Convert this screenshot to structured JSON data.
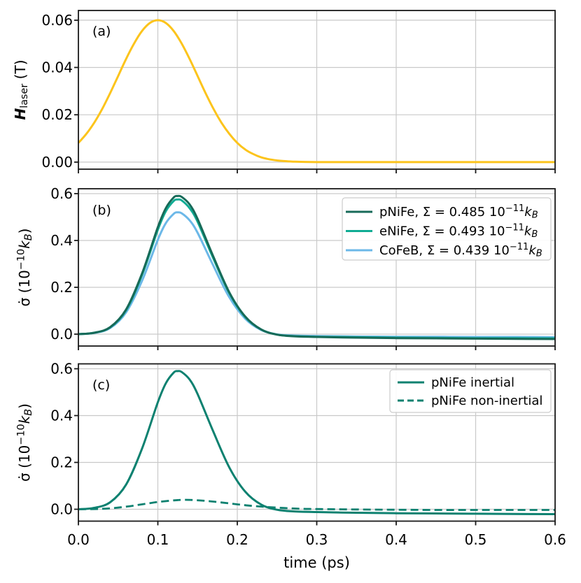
{
  "figure": {
    "xlabel": "time (ps)",
    "xlim": [
      0,
      0.6
    ],
    "xticks": [
      0,
      0.1,
      0.2,
      0.3,
      0.4,
      0.5,
      0.6
    ],
    "xtick_labels": [
      "0.0",
      "0.1",
      "0.2",
      "0.3",
      "0.4",
      "0.5",
      "0.6"
    ],
    "grid": true,
    "colors": {
      "background": "#ffffff",
      "grid": "#c9c9c9",
      "spine": "#1a1a1a",
      "text": "#000000",
      "legend_border": "#cccccc",
      "legend_background": "#ffffff"
    }
  },
  "chart_data": [
    {
      "type": "line",
      "panel": "a",
      "panel_label": "(a)",
      "ylabel_segments": [
        {
          "t": "H",
          "italic": true,
          "bold": true
        },
        {
          "t": "laser",
          "sub": true
        },
        {
          "t": " (T)"
        }
      ],
      "ylim": [
        -0.003,
        0.0641
      ],
      "yticks": [
        0,
        0.02,
        0.04,
        0.06
      ],
      "ytick_labels": [
        "0.00",
        "0.02",
        "0.04",
        "0.06"
      ],
      "grid": true,
      "series": [
        {
          "name": "H_laser",
          "color": "#FCC41C",
          "style": "solid",
          "points": [
            [
              0,
              0.0081
            ],
            [
              0.01,
              0.0119
            ],
            [
              0.02,
              0.0167
            ],
            [
              0.03,
              0.0225
            ],
            [
              0.04,
              0.0292
            ],
            [
              0.05,
              0.0364
            ],
            [
              0.06,
              0.0436
            ],
            [
              0.07,
              0.0501
            ],
            [
              0.08,
              0.0554
            ],
            [
              0.09,
              0.0588
            ],
            [
              0.1,
              0.06
            ],
            [
              0.11,
              0.0588
            ],
            [
              0.12,
              0.0554
            ],
            [
              0.13,
              0.0501
            ],
            [
              0.14,
              0.0436
            ],
            [
              0.15,
              0.0364
            ],
            [
              0.16,
              0.0292
            ],
            [
              0.17,
              0.0225
            ],
            [
              0.18,
              0.0167
            ],
            [
              0.19,
              0.0119
            ],
            [
              0.2,
              0.0081
            ],
            [
              0.21,
              0.0053
            ],
            [
              0.22,
              0.0034
            ],
            [
              0.23,
              0.002
            ],
            [
              0.24,
              0.0012
            ],
            [
              0.25,
              0.0007
            ],
            [
              0.26,
              0.0004
            ],
            [
              0.27,
              0.0002
            ],
            [
              0.28,
              0.0001
            ],
            [
              0.3,
              0
            ],
            [
              0.35,
              0
            ],
            [
              0.4,
              0
            ],
            [
              0.45,
              0
            ],
            [
              0.5,
              0
            ],
            [
              0.55,
              0
            ],
            [
              0.6,
              0
            ]
          ]
        }
      ]
    },
    {
      "type": "line",
      "panel": "b",
      "panel_label": "(b)",
      "ylabel_segments": [
        {
          "t": "σ̇ (10"
        },
        {
          "t": "−10",
          "sup": true
        },
        {
          "t": "k",
          "italic": true
        },
        {
          "t": "B",
          "sub": true,
          "italic": true
        },
        {
          "t": ")"
        }
      ],
      "ylim": [
        -0.0507,
        0.6209
      ],
      "yticks": [
        0,
        0.2,
        0.4,
        0.6
      ],
      "ytick_labels": [
        "0.0",
        "0.2",
        "0.4",
        "0.6"
      ],
      "grid": true,
      "legend": {
        "position": "upper-right",
        "items": [
          {
            "series": "pNiFe",
            "segments": [
              {
                "t": "pNiFe, Σ = 0.485 10"
              },
              {
                "t": "−11",
                "sup": true
              },
              {
                "t": "k",
                "italic": true
              },
              {
                "t": "B",
                "sub": true,
                "italic": true
              }
            ]
          },
          {
            "series": "eNiFe",
            "segments": [
              {
                "t": "eNiFe, Σ = 0.493 10"
              },
              {
                "t": "−11",
                "sup": true
              },
              {
                "t": "k",
                "italic": true
              },
              {
                "t": "B",
                "sub": true,
                "italic": true
              }
            ]
          },
          {
            "series": "CoFeB",
            "segments": [
              {
                "t": "CoFeB, Σ = 0.439 10"
              },
              {
                "t": "−11",
                "sup": true
              },
              {
                "t": "k",
                "italic": true
              },
              {
                "t": "B",
                "sub": true,
                "italic": true
              }
            ]
          }
        ]
      },
      "series": [
        {
          "name": "pNiFe",
          "color": "#176A58",
          "style": "solid",
          "sigma_label": "0.485",
          "points": [
            [
              0,
              0
            ],
            [
              0.02,
              0.006
            ],
            [
              0.04,
              0.03
            ],
            [
              0.06,
              0.105
            ],
            [
              0.08,
              0.258
            ],
            [
              0.1,
              0.457
            ],
            [
              0.11,
              0.538
            ],
            [
              0.12,
              0.584
            ],
            [
              0.125,
              0.59
            ],
            [
              0.13,
              0.586
            ],
            [
              0.14,
              0.554
            ],
            [
              0.15,
              0.492
            ],
            [
              0.17,
              0.33
            ],
            [
              0.19,
              0.178
            ],
            [
              0.21,
              0.075
            ],
            [
              0.23,
              0.02
            ],
            [
              0.25,
              -0.002
            ],
            [
              0.27,
              -0.009
            ],
            [
              0.3,
              -0.012
            ],
            [
              0.35,
              -0.015
            ],
            [
              0.4,
              -0.017
            ],
            [
              0.45,
              -0.018
            ],
            [
              0.5,
              -0.019
            ],
            [
              0.55,
              -0.02
            ],
            [
              0.6,
              -0.021
            ]
          ]
        },
        {
          "name": "eNiFe",
          "color": "#10AC94",
          "style": "solid",
          "sigma_label": "0.493",
          "points": [
            [
              0,
              0
            ],
            [
              0.02,
              0.006
            ],
            [
              0.04,
              0.029
            ],
            [
              0.06,
              0.102
            ],
            [
              0.08,
              0.252
            ],
            [
              0.1,
              0.446
            ],
            [
              0.11,
              0.525
            ],
            [
              0.12,
              0.569
            ],
            [
              0.125,
              0.575
            ],
            [
              0.13,
              0.571
            ],
            [
              0.14,
              0.538
            ],
            [
              0.15,
              0.48
            ],
            [
              0.17,
              0.322
            ],
            [
              0.19,
              0.174
            ],
            [
              0.21,
              0.073
            ],
            [
              0.23,
              0.02
            ],
            [
              0.25,
              -0.002
            ],
            [
              0.27,
              -0.008
            ],
            [
              0.3,
              -0.011
            ],
            [
              0.35,
              -0.013
            ],
            [
              0.4,
              -0.015
            ],
            [
              0.45,
              -0.016
            ],
            [
              0.5,
              -0.017
            ],
            [
              0.55,
              -0.017
            ],
            [
              0.6,
              -0.018
            ]
          ]
        },
        {
          "name": "CoFeB",
          "color": "#6CB8E8",
          "style": "solid",
          "sigma_label": "0.439",
          "points": [
            [
              0,
              0
            ],
            [
              0.02,
              0.005
            ],
            [
              0.04,
              0.026
            ],
            [
              0.06,
              0.093
            ],
            [
              0.08,
              0.227
            ],
            [
              0.1,
              0.403
            ],
            [
              0.11,
              0.474
            ],
            [
              0.12,
              0.514
            ],
            [
              0.125,
              0.52
            ],
            [
              0.13,
              0.516
            ],
            [
              0.14,
              0.486
            ],
            [
              0.15,
              0.433
            ],
            [
              0.17,
              0.291
            ],
            [
              0.19,
              0.157
            ],
            [
              0.21,
              0.066
            ],
            [
              0.23,
              0.018
            ],
            [
              0.25,
              -0.001
            ],
            [
              0.27,
              -0.006
            ],
            [
              0.3,
              -0.008
            ],
            [
              0.35,
              -0.01
            ],
            [
              0.4,
              -0.011
            ],
            [
              0.45,
              -0.011
            ],
            [
              0.5,
              -0.012
            ],
            [
              0.55,
              -0.012
            ],
            [
              0.6,
              -0.013
            ]
          ]
        }
      ]
    },
    {
      "type": "line",
      "panel": "c",
      "panel_label": "(c)",
      "ylabel_segments": [
        {
          "t": "σ̇ (10"
        },
        {
          "t": "−10",
          "sup": true
        },
        {
          "t": "k",
          "italic": true
        },
        {
          "t": "B",
          "sub": true,
          "italic": true
        },
        {
          "t": ")"
        }
      ],
      "ylim": [
        -0.0507,
        0.6209
      ],
      "yticks": [
        0,
        0.2,
        0.4,
        0.6
      ],
      "ytick_labels": [
        "0.0",
        "0.2",
        "0.4",
        "0.6"
      ],
      "grid": true,
      "legend": {
        "position": "upper-right",
        "items": [
          {
            "series": "pNiFe inertial",
            "segments": [
              {
                "t": "pNiFe inertial"
              }
            ]
          },
          {
            "series": "pNiFe non-inertial",
            "segments": [
              {
                "t": "pNiFe non-inertial"
              }
            ]
          }
        ]
      },
      "series": [
        {
          "name": "pNiFe inertial",
          "color": "#0D8170",
          "style": "solid",
          "points": [
            [
              0,
              0
            ],
            [
              0.02,
              0.006
            ],
            [
              0.04,
              0.03
            ],
            [
              0.06,
              0.105
            ],
            [
              0.08,
              0.258
            ],
            [
              0.1,
              0.457
            ],
            [
              0.11,
              0.538
            ],
            [
              0.12,
              0.584
            ],
            [
              0.125,
              0.59
            ],
            [
              0.13,
              0.586
            ],
            [
              0.14,
              0.554
            ],
            [
              0.15,
              0.492
            ],
            [
              0.17,
              0.33
            ],
            [
              0.19,
              0.178
            ],
            [
              0.21,
              0.075
            ],
            [
              0.23,
              0.02
            ],
            [
              0.25,
              -0.002
            ],
            [
              0.27,
              -0.009
            ],
            [
              0.3,
              -0.012
            ],
            [
              0.35,
              -0.015
            ],
            [
              0.4,
              -0.017
            ],
            [
              0.45,
              -0.018
            ],
            [
              0.5,
              -0.019
            ],
            [
              0.55,
              -0.02
            ],
            [
              0.6,
              -0.021
            ]
          ]
        },
        {
          "name": "pNiFe non-inertial",
          "color": "#0D8170",
          "style": "dashed",
          "points": [
            [
              0,
              0
            ],
            [
              0.02,
              0.001
            ],
            [
              0.04,
              0.004
            ],
            [
              0.06,
              0.011
            ],
            [
              0.08,
              0.021
            ],
            [
              0.1,
              0.031
            ],
            [
              0.12,
              0.038
            ],
            [
              0.13,
              0.04
            ],
            [
              0.14,
              0.04
            ],
            [
              0.16,
              0.036
            ],
            [
              0.18,
              0.029
            ],
            [
              0.2,
              0.021
            ],
            [
              0.22,
              0.014
            ],
            [
              0.24,
              0.009
            ],
            [
              0.26,
              0.005
            ],
            [
              0.28,
              0.002
            ],
            [
              0.3,
              0.001
            ],
            [
              0.35,
              -0.001
            ],
            [
              0.4,
              -0.002
            ],
            [
              0.45,
              -0.003
            ],
            [
              0.5,
              -0.003
            ],
            [
              0.55,
              -0.003
            ],
            [
              0.6,
              -0.003
            ]
          ]
        }
      ]
    }
  ]
}
